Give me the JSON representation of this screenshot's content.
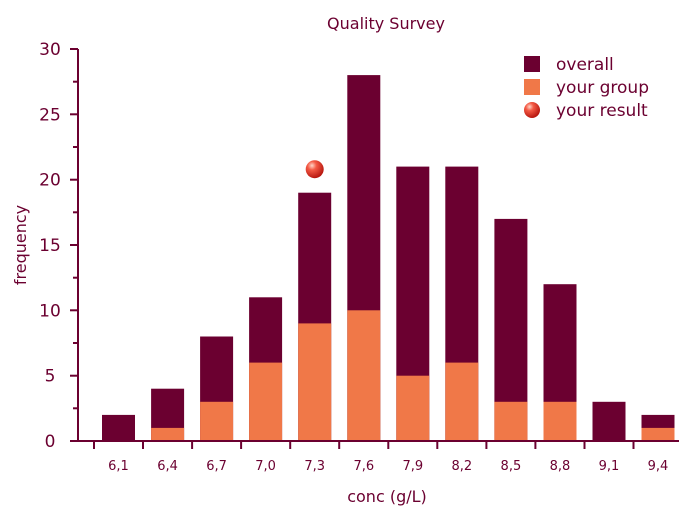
{
  "colors": {
    "overall": "#6b0030",
    "your_group": "#f07848",
    "your_result": "#e8302a",
    "text": "#6b0030",
    "axis": "#6b0030"
  },
  "chart_data": {
    "type": "bar",
    "stacked": "overlay",
    "title": "Quality Survey",
    "xlabel": "conc (g/L)",
    "ylabel": "frequency",
    "ylim": [
      0,
      30
    ],
    "yticks": [
      "0",
      "5",
      "10",
      "15",
      "20",
      "25",
      "30"
    ],
    "categories": [
      "6,1",
      "6,4",
      "6,7",
      "7,0",
      "7,3",
      "7,6",
      "7,9",
      "8,2",
      "8,5",
      "8,8",
      "9,1",
      "9,4"
    ],
    "series": [
      {
        "name": "overall",
        "values": [
          2,
          4,
          8,
          11,
          19,
          28,
          21,
          21,
          17,
          12,
          3,
          2
        ]
      },
      {
        "name": "your group",
        "values": [
          0,
          1,
          3,
          6,
          9,
          10,
          5,
          6,
          3,
          3,
          0,
          1
        ]
      }
    ],
    "marker": {
      "name": "your result",
      "category": "7,3",
      "y": 20.8
    },
    "legend": {
      "position": "top-right",
      "items": [
        "overall",
        "your group",
        "your result"
      ]
    }
  }
}
